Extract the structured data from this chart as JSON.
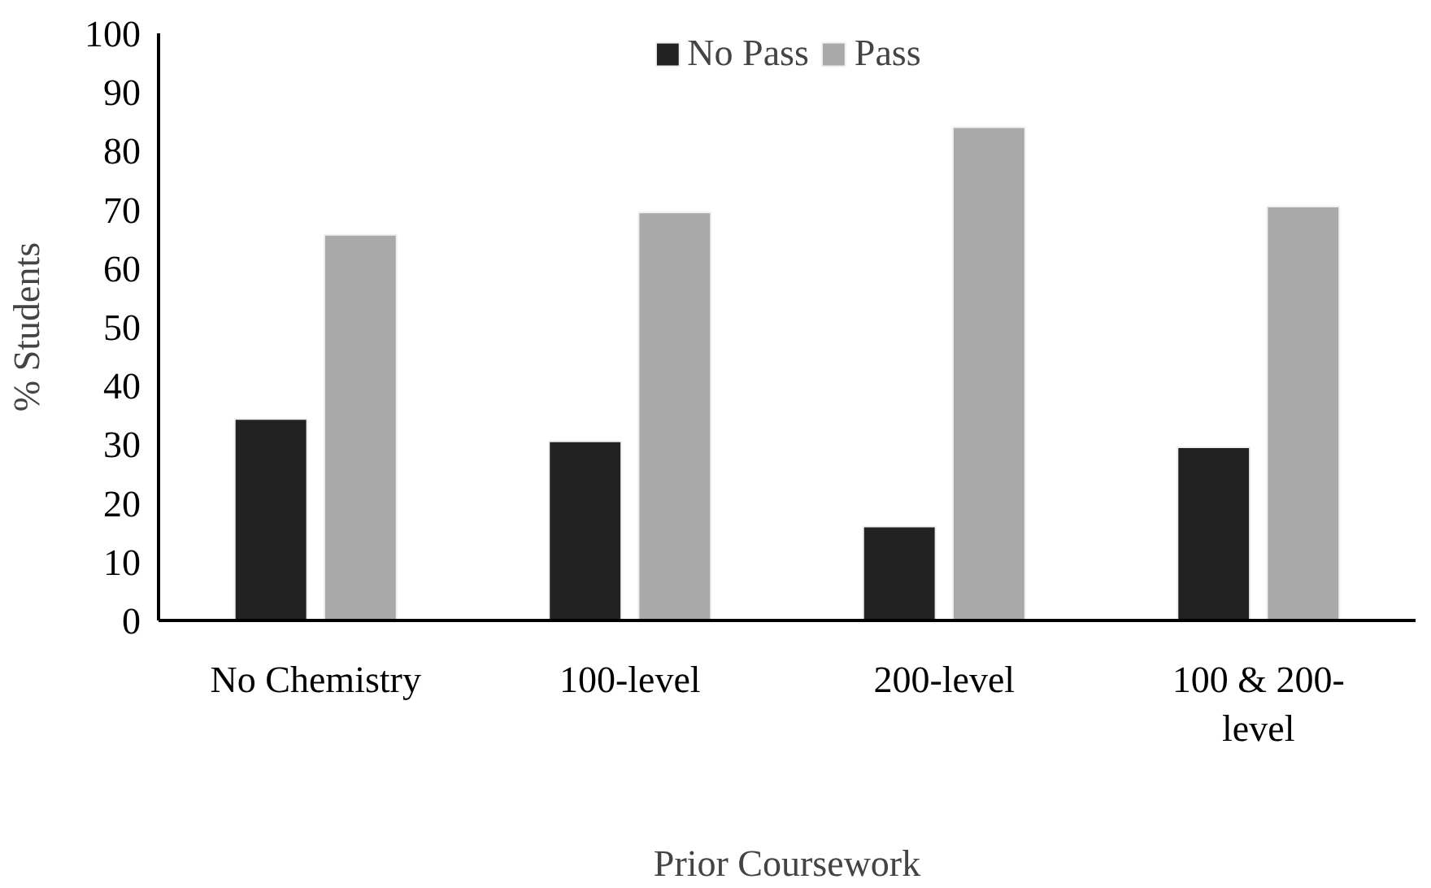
{
  "chart_data": {
    "type": "bar",
    "xlabel": "Prior Coursework",
    "ylabel": "% Students",
    "categories": [
      "No Chemistry",
      "100-level",
      "200-level",
      "100 & 200-level"
    ],
    "series": [
      {
        "name": "No Pass",
        "color": "#222222",
        "values": [
          34.3,
          30.5,
          16,
          29.5
        ]
      },
      {
        "name": "Pass",
        "color": "#a9a9a9",
        "values": [
          65.7,
          69.5,
          84,
          70.5
        ]
      }
    ],
    "ylim": [
      0,
      100
    ],
    "yticks": [
      0,
      10,
      20,
      30,
      40,
      50,
      60,
      70,
      80,
      90,
      100
    ],
    "grid": false,
    "legend": "top"
  }
}
